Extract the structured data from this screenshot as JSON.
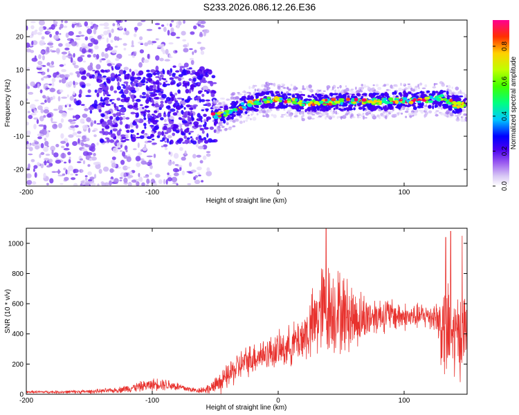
{
  "title": "S233.2026.086.12.26.E36",
  "chart_data": [
    {
      "type": "heatmap",
      "xlabel": "Height of straight line (km)",
      "ylabel": "Frequency (Hz)",
      "xlim": [
        -200,
        150
      ],
      "ylim": [
        -25,
        25
      ],
      "xticks": [
        -200,
        -100,
        0,
        100
      ],
      "yticks": [
        -20,
        -10,
        0,
        10,
        20
      ],
      "colorbar": {
        "label": "Normalized spectral amplitude",
        "ticks": [
          0.0,
          0.2,
          0.4,
          0.6,
          0.8
        ],
        "range": [
          0,
          0.95
        ]
      },
      "ridge": {
        "x": [
          -50,
          -40,
          -30,
          -20,
          -10,
          0,
          10,
          20,
          40,
          60,
          80,
          100,
          120,
          130,
          140,
          150
        ],
        "y": [
          -4,
          -3,
          -1,
          0,
          1,
          1,
          0.5,
          0,
          0.3,
          0.5,
          0.5,
          0.8,
          1,
          1.5,
          -0.5,
          -0.5
        ]
      }
    },
    {
      "type": "line",
      "xlabel": "Height of straight line (km)",
      "ylabel": "SNR (10 * v/v)",
      "xlim": [
        -200,
        150
      ],
      "ylim": [
        0,
        1100
      ],
      "xticks": [
        -200,
        -100,
        0,
        100
      ],
      "yticks": [
        0,
        200,
        400,
        600,
        800,
        1000
      ],
      "color": "#e8322e",
      "envelope": {
        "x": [
          -200,
          -170,
          -150,
          -130,
          -110,
          -95,
          -85,
          -75,
          -65,
          -55,
          -45,
          -35,
          -25,
          -15,
          -5,
          5,
          15,
          25,
          35,
          45,
          55,
          65,
          75,
          85,
          95,
          105,
          115,
          125,
          132,
          140,
          150
        ],
        "mean": [
          15,
          15,
          18,
          25,
          50,
          70,
          60,
          40,
          25,
          35,
          80,
          160,
          220,
          260,
          280,
          300,
          350,
          420,
          560,
          560,
          520,
          500,
          520,
          530,
          520,
          510,
          520,
          520,
          400,
          380,
          420
        ],
        "amp": [
          10,
          12,
          15,
          20,
          40,
          50,
          45,
          30,
          20,
          40,
          80,
          120,
          120,
          130,
          130,
          150,
          170,
          250,
          380,
          350,
          300,
          220,
          150,
          140,
          120,
          100,
          100,
          120,
          400,
          350,
          300
        ]
      },
      "peaks": [
        {
          "x": 38,
          "y": 1100
        },
        {
          "x": 133,
          "y": 1040
        },
        {
          "x": 137,
          "y": 1080
        },
        {
          "x": 146,
          "y": 1050
        }
      ]
    }
  ]
}
